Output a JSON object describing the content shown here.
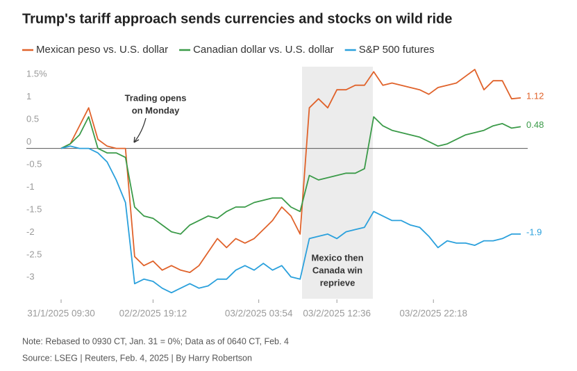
{
  "chart_data": {
    "type": "line",
    "title": "Trump's tariff approach sends currencies and stocks on wild ride",
    "x": [
      0,
      2,
      4,
      6,
      8,
      10,
      12,
      14,
      16,
      18,
      20,
      22,
      24,
      26,
      28,
      30,
      32,
      34,
      36,
      38,
      40,
      42,
      44,
      46,
      48,
      50,
      52,
      54,
      56,
      58,
      60,
      62,
      64,
      66,
      68,
      70,
      72,
      74,
      76,
      78,
      80,
      82,
      84,
      86,
      88,
      90,
      92,
      94,
      96,
      98,
      100
    ],
    "xlim": [
      0,
      100
    ],
    "xticks": [
      {
        "value": 0,
        "label": "31/1/2025 09:30"
      },
      {
        "value": 20,
        "label": "02/2/2025 19:12"
      },
      {
        "value": 43,
        "label": "03/2/2025 03:54"
      },
      {
        "value": 60,
        "label": "03/2/2025 12:36"
      },
      {
        "value": 81,
        "label": "03/2/2025 22:18"
      }
    ],
    "ylim": [
      -3.35,
      1.75
    ],
    "yticks": [
      {
        "value": 1.5,
        "label": "1.5%"
      },
      1,
      0.5,
      0,
      -0.5,
      -1,
      -1.5,
      -2,
      -2.5,
      -3
    ],
    "grid": false,
    "zero_line": true,
    "series": [
      {
        "name": "Mexican peso vs. U.S. dollar",
        "color": "#e0622a",
        "values": [
          0,
          0.1,
          0.5,
          0.9,
          0.2,
          0.05,
          0,
          0,
          -2.4,
          -2.6,
          -2.5,
          -2.7,
          -2.6,
          -2.7,
          -2.75,
          -2.6,
          -2.3,
          -2.0,
          -2.2,
          -2.0,
          -2.1,
          -2.0,
          -1.8,
          -1.6,
          -1.3,
          -1.5,
          -1.9,
          0.9,
          1.1,
          0.9,
          1.3,
          1.3,
          1.4,
          1.4,
          1.7,
          1.4,
          1.45,
          1.4,
          1.35,
          1.3,
          1.2,
          1.35,
          1.4,
          1.45,
          1.6,
          1.75,
          1.3,
          1.5,
          1.5,
          1.1,
          1.12
        ]
      },
      {
        "name": "Canadian dollar vs. U.S. dollar",
        "color": "#3a9a48",
        "values": [
          0,
          0.1,
          0.3,
          0.7,
          0,
          -0.1,
          -0.1,
          -0.2,
          -1.3,
          -1.5,
          -1.55,
          -1.7,
          -1.85,
          -1.9,
          -1.7,
          -1.6,
          -1.5,
          -1.55,
          -1.4,
          -1.3,
          -1.3,
          -1.2,
          -1.15,
          -1.1,
          -1.1,
          -1.3,
          -1.4,
          -0.6,
          -0.7,
          -0.65,
          -0.6,
          -0.55,
          -0.55,
          -0.45,
          0.7,
          0.5,
          0.4,
          0.35,
          0.3,
          0.25,
          0.15,
          0.05,
          0.1,
          0.2,
          0.3,
          0.35,
          0.4,
          0.5,
          0.55,
          0.45,
          0.48
        ]
      },
      {
        "name": "S&P 500 futures",
        "color": "#2aa0dc",
        "values": [
          0,
          0.05,
          0,
          0,
          -0.1,
          -0.3,
          -0.7,
          -1.2,
          -3.0,
          -2.9,
          -2.95,
          -3.1,
          -3.2,
          -3.1,
          -3.0,
          -3.1,
          -3.05,
          -2.9,
          -2.9,
          -2.7,
          -2.6,
          -2.7,
          -2.55,
          -2.7,
          -2.6,
          -2.85,
          -2.9,
          -2.0,
          -1.95,
          -1.9,
          -2.0,
          -1.85,
          -1.8,
          -1.75,
          -1.4,
          -1.5,
          -1.6,
          -1.6,
          -1.7,
          -1.75,
          -1.95,
          -2.2,
          -2.05,
          -2.1,
          -2.1,
          -2.15,
          -2.05,
          -2.05,
          -2.0,
          -1.9,
          -1.9
        ]
      }
    ],
    "annotations": [
      "Trading opens",
      "on Monday",
      "Mexico then",
      "Canada win",
      "reprieve"
    ],
    "note": "Note: Rebased to 0930 CT, Jan. 31 = 0%; Data as of 0640 CT, Feb. 4",
    "source": "Source: LSEG | Reuters, Feb. 4, 2025 | By Harry Robertson"
  }
}
